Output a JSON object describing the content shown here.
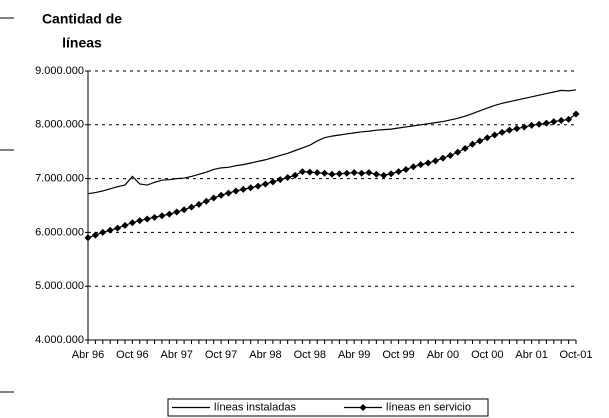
{
  "chart_data": {
    "type": "line",
    "title": [
      "Cantidad de",
      "líneas"
    ],
    "categories": [
      "Abr 96",
      null,
      null,
      null,
      null,
      null,
      "Oct 96",
      null,
      null,
      null,
      null,
      null,
      "Abr 97",
      null,
      null,
      null,
      null,
      null,
      "Oct 97",
      null,
      null,
      null,
      null,
      null,
      "Abr 98",
      null,
      null,
      null,
      null,
      null,
      "Oct 98",
      null,
      null,
      null,
      null,
      null,
      "Abr 99",
      null,
      null,
      null,
      null,
      null,
      "Oct 99",
      null,
      null,
      null,
      null,
      null,
      "Abr 00",
      null,
      null,
      null,
      null,
      null,
      "Oct 00",
      null,
      null,
      null,
      null,
      null,
      "Abr 01",
      null,
      null,
      null,
      null,
      null,
      "Oct-01"
    ],
    "series": [
      {
        "name": "líneas instaladas",
        "color": "#000000",
        "marker": "none",
        "values": [
          6720000,
          6740000,
          6770000,
          6810000,
          6850000,
          6880000,
          7040000,
          6900000,
          6880000,
          6930000,
          6970000,
          6980000,
          7000000,
          7010000,
          7040000,
          7080000,
          7120000,
          7170000,
          7200000,
          7210000,
          7240000,
          7260000,
          7290000,
          7320000,
          7350000,
          7390000,
          7430000,
          7470000,
          7520000,
          7570000,
          7620000,
          7700000,
          7760000,
          7790000,
          7810000,
          7830000,
          7850000,
          7870000,
          7880000,
          7900000,
          7910000,
          7920000,
          7940000,
          7960000,
          7980000,
          8000000,
          8020000,
          8040000,
          8060000,
          8090000,
          8120000,
          8160000,
          8210000,
          8260000,
          8310000,
          8360000,
          8400000,
          8430000,
          8460000,
          8490000,
          8520000,
          8550000,
          8580000,
          8610000,
          8640000,
          8630000,
          8650000
        ]
      },
      {
        "name": "líneas en servicio",
        "color": "#000000",
        "marker": "diamond",
        "values": [
          5900000,
          5950000,
          6000000,
          6040000,
          6080000,
          6130000,
          6180000,
          6220000,
          6250000,
          6280000,
          6310000,
          6340000,
          6380000,
          6420000,
          6470000,
          6520000,
          6580000,
          6640000,
          6690000,
          6730000,
          6770000,
          6800000,
          6830000,
          6860000,
          6900000,
          6940000,
          6980000,
          7020000,
          7060000,
          7130000,
          7120000,
          7110000,
          7100000,
          7080000,
          7090000,
          7100000,
          7110000,
          7100000,
          7110000,
          7080000,
          7060000,
          7090000,
          7130000,
          7170000,
          7220000,
          7260000,
          7290000,
          7330000,
          7380000,
          7430000,
          7490000,
          7560000,
          7640000,
          7700000,
          7760000,
          7810000,
          7860000,
          7900000,
          7930000,
          7960000,
          7990000,
          8010000,
          8030000,
          8060000,
          8080000,
          8100000,
          8200000
        ]
      }
    ],
    "ylim": [
      4000000,
      9000000
    ],
    "yticks": [
      {
        "value": 4000000,
        "label": "4.000.000"
      },
      {
        "value": 5000000,
        "label": "5.000.000"
      },
      {
        "value": 6000000,
        "label": "6.000.000"
      },
      {
        "value": 7000000,
        "label": "7.000.000"
      },
      {
        "value": 8000000,
        "label": "8.000.000"
      },
      {
        "value": 9000000,
        "label": "9.000.000"
      }
    ],
    "grid": true,
    "legend": "bottom"
  }
}
